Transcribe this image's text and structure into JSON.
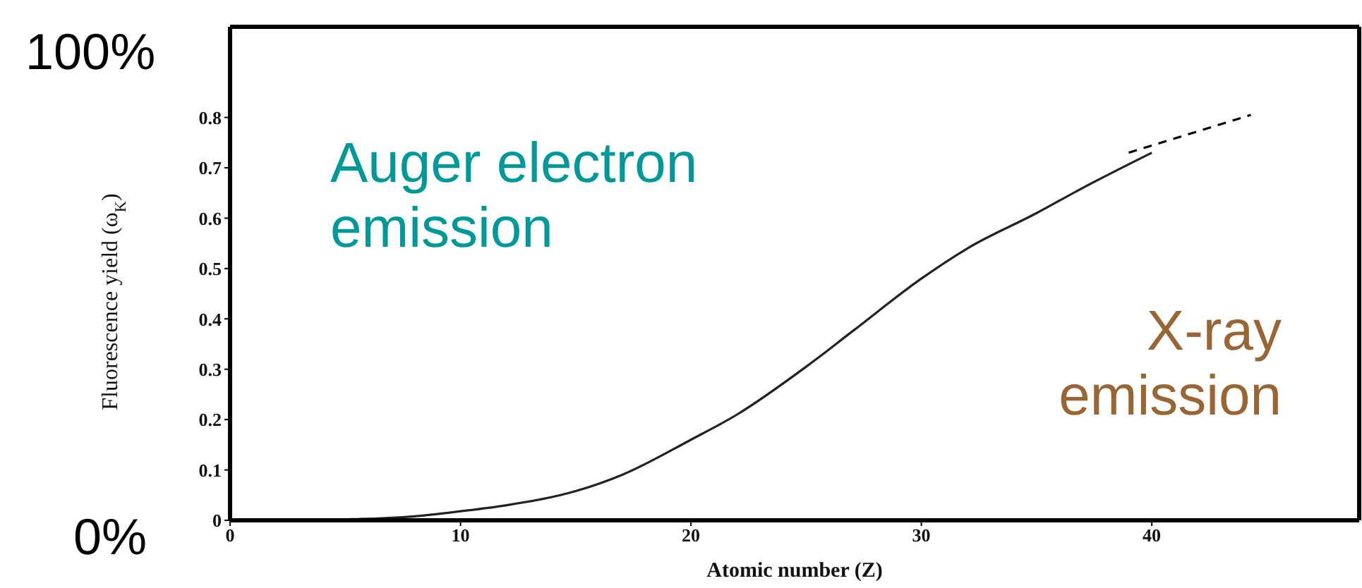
{
  "chart_data": {
    "type": "line",
    "xlabel": "Atomic number (Z)",
    "ylabel": "Fluorescence yield (ω$_{K}$)",
    "x": [
      0,
      5,
      8,
      10,
      12,
      15,
      17,
      20,
      22,
      25,
      27,
      30,
      32,
      35,
      37,
      40
    ],
    "series": [
      {
        "color": "#222222",
        "values": [
          0,
          0.002,
          0.008,
          0.018,
          0.03,
          0.058,
          0.09,
          0.16,
          0.21,
          0.305,
          0.375,
          0.48,
          0.54,
          0.61,
          0.66,
          0.73
        ]
      },
      {
        "type": "line",
        "x": [
          39,
          44.3
        ],
        "values": [
          0.73,
          0.805
        ],
        "color": "#000000",
        "line_style": "dashed"
      }
    ],
    "xlim": [
      0,
      49
    ],
    "xticks": [
      0,
      10,
      20,
      30,
      40
    ],
    "ylim": [
      0,
      0.98
    ],
    "yticks": [
      0,
      0.1,
      0.2,
      0.3,
      0.4,
      0.5,
      0.6,
      0.7,
      0.8
    ],
    "marker": "none",
    "line_style": "solid",
    "annotations": [
      "100%",
      "0%",
      "Auger electron emission",
      "X-ray emission"
    ]
  }
}
